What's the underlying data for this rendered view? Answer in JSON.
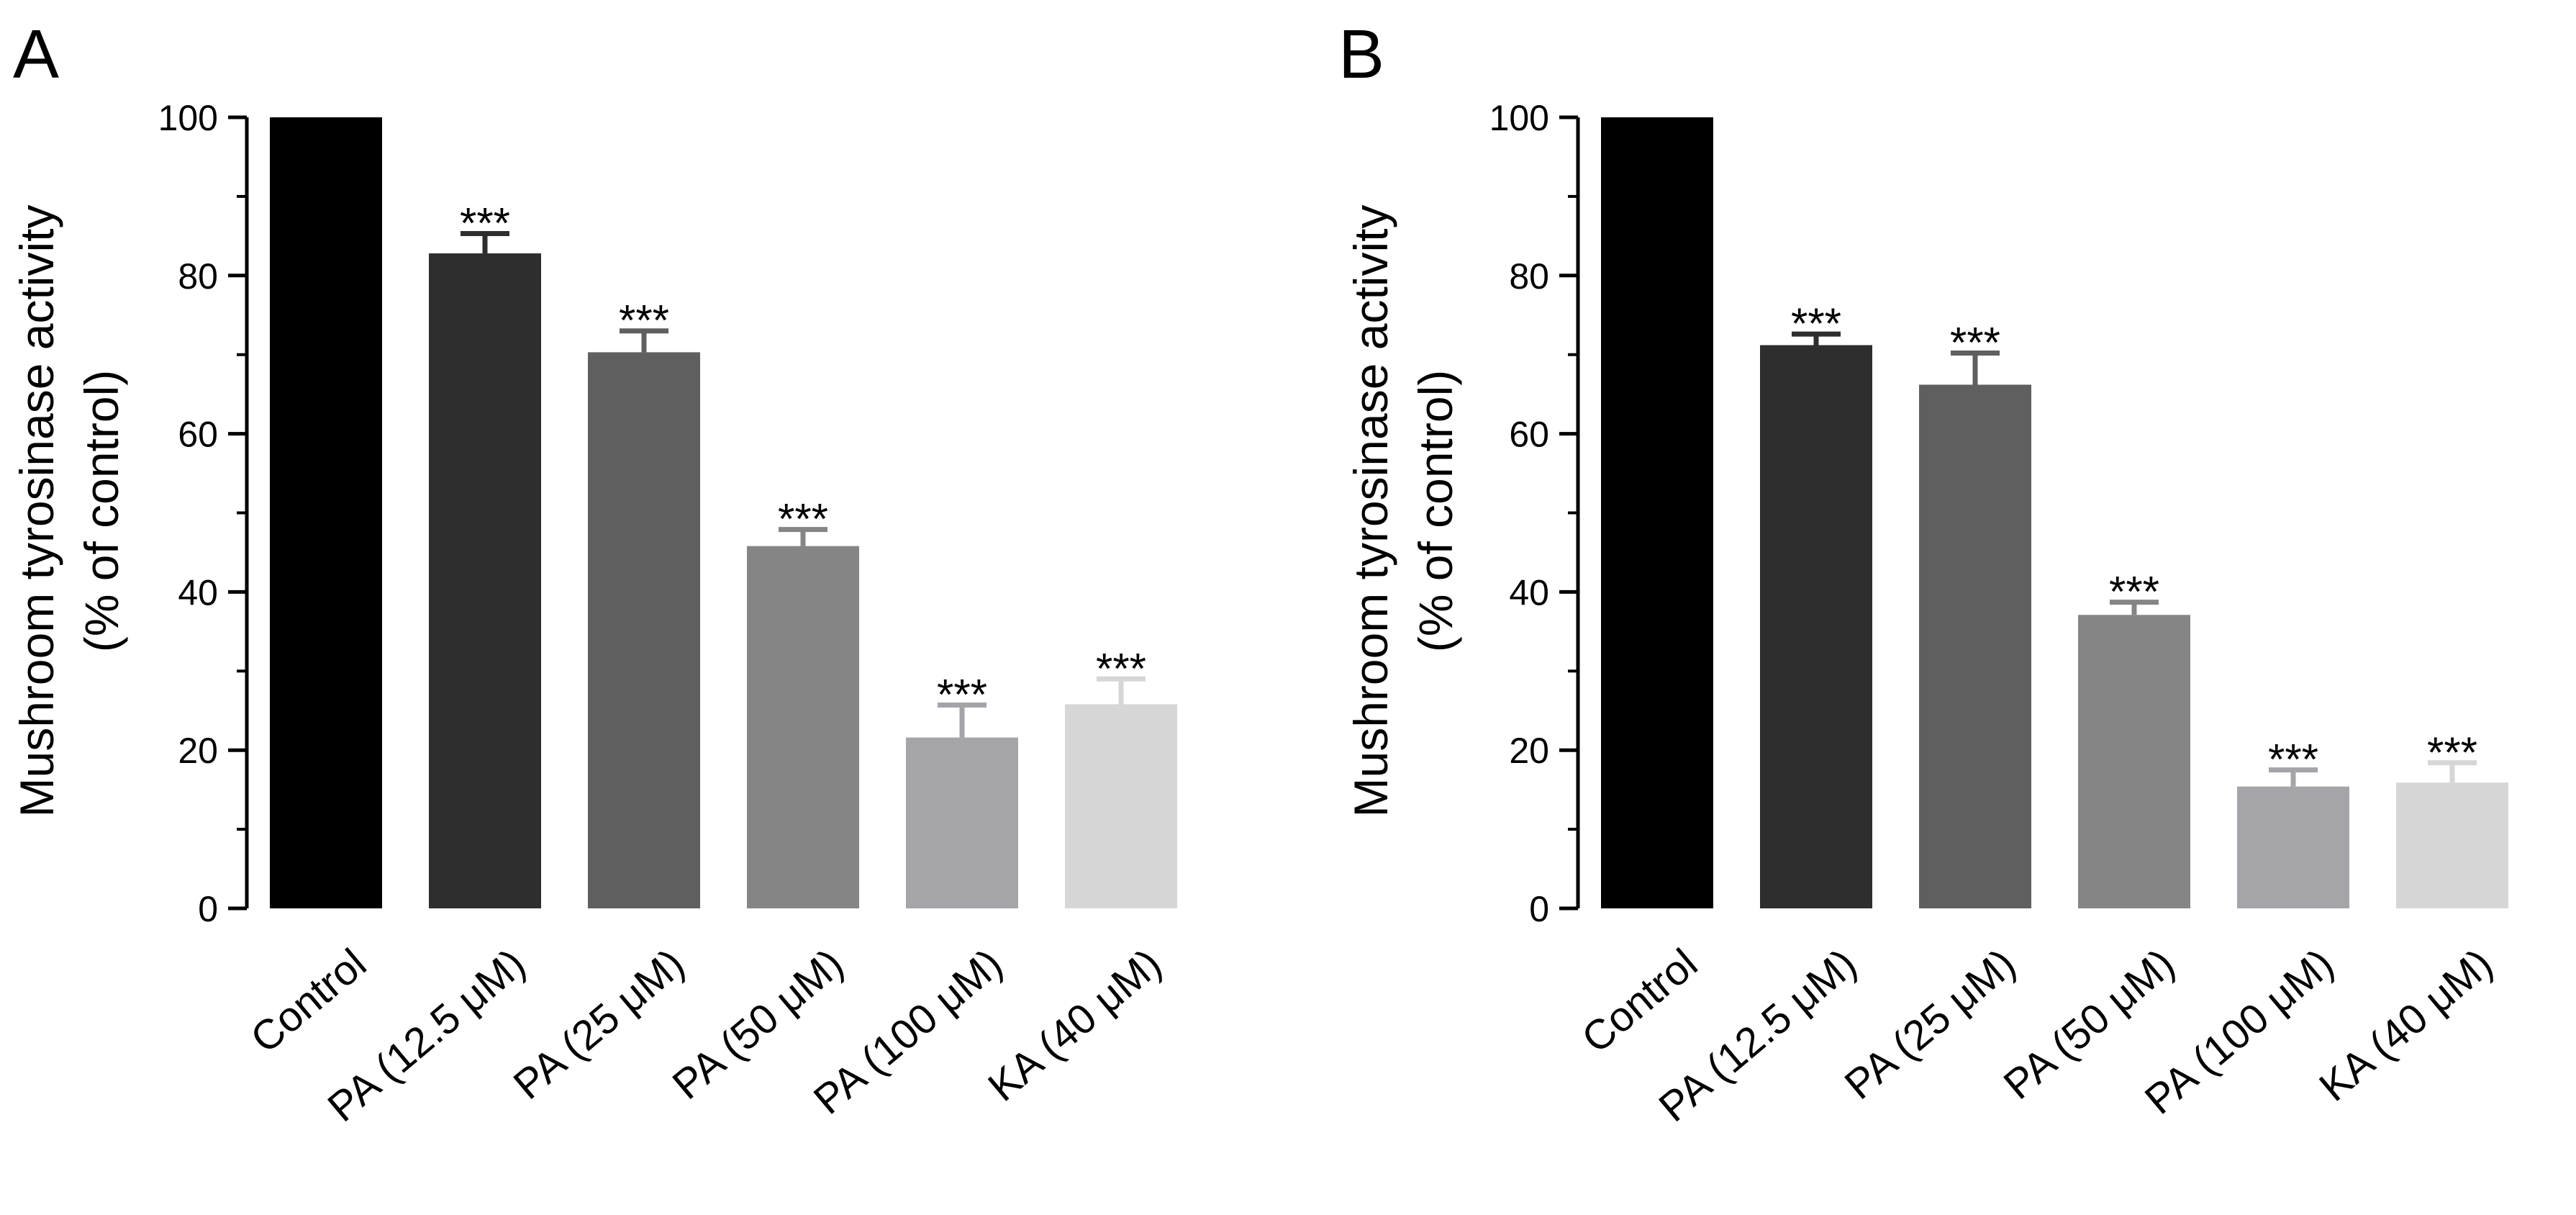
{
  "chart_data": [
    {
      "type": "bar",
      "panel_label": "A",
      "ylabel_line1": "Mushroom tyrosinase activity",
      "ylabel_line2": "(% of control)",
      "ylim": [
        0,
        100
      ],
      "yticks": [
        "0",
        "20",
        "40",
        "60",
        "80",
        "100"
      ],
      "categories": [
        "Control",
        "PA (12.5 μM)",
        "PA (25 μM)",
        "PA (50 μM)",
        "PA (100 μM)",
        "KA (40 μM)"
      ],
      "values": [
        100,
        82.8,
        70.3,
        45.8,
        21.6,
        25.8
      ],
      "errors": [
        0,
        2.5,
        2.7,
        2.1,
        4.1,
        3.2
      ],
      "annotations": [
        "",
        "***",
        "***",
        "***",
        "***",
        "***"
      ]
    },
    {
      "type": "bar",
      "panel_label": "B",
      "ylabel_line1": "Mushroom tyrosinase activity",
      "ylabel_line2": "(% of control)",
      "ylim": [
        0,
        100
      ],
      "yticks": [
        "0",
        "20",
        "40",
        "60",
        "80",
        "100"
      ],
      "categories": [
        "Control",
        "PA (12.5 μM)",
        "PA (25 μM)",
        "PA (50 μM)",
        "PA (100 μM)",
        "KA (40 μM)"
      ],
      "values": [
        100,
        71.2,
        66.2,
        37.1,
        15.4,
        15.9
      ],
      "errors": [
        0,
        1.4,
        4.0,
        1.6,
        2.1,
        2.5
      ],
      "annotations": [
        "",
        "***",
        "***",
        "***",
        "***",
        "***"
      ]
    }
  ],
  "bar_colors": [
    "#000000",
    "#2e2e2e",
    "#5f5f5f",
    "#858585",
    "#a5a4a9",
    "#d6d6d6"
  ]
}
